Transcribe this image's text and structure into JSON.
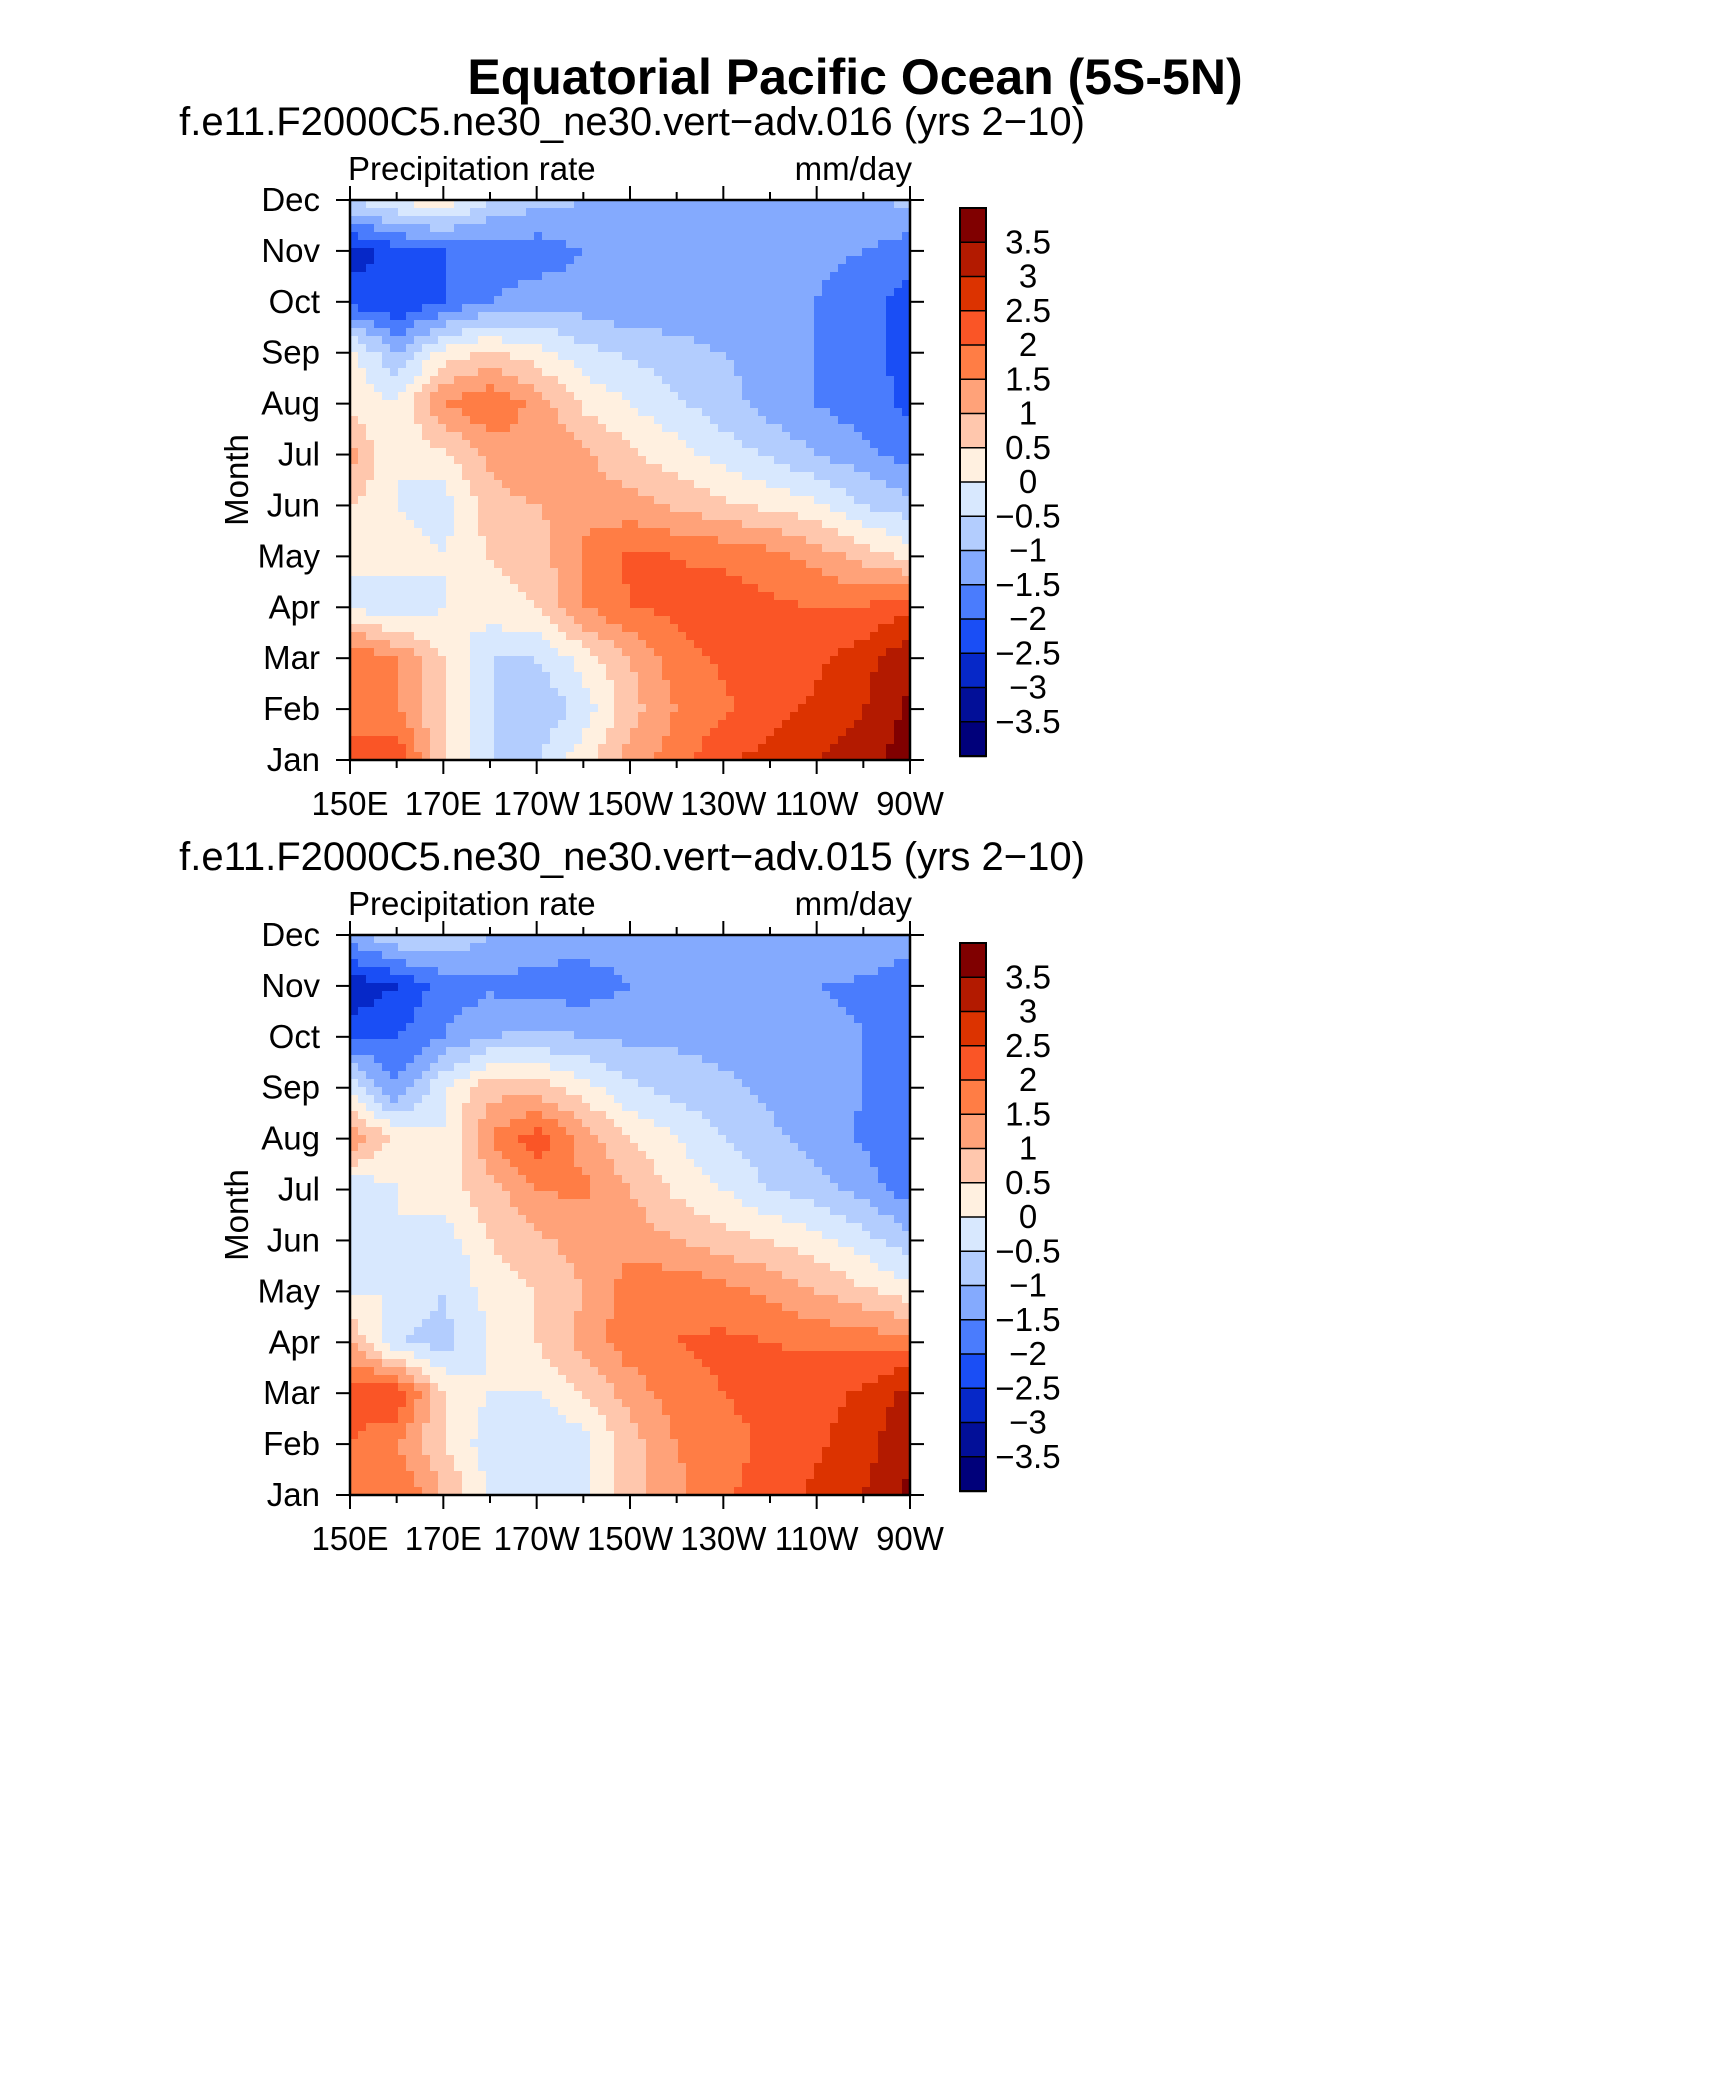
{
  "title": "Equatorial Pacific Ocean (5S-5N)",
  "colorbar": {
    "levels": [
      "3.5",
      "3",
      "2.5",
      "2",
      "1.5",
      "1",
      "0.5",
      "0",
      "−0.5",
      "−1",
      "−1.5",
      "−2",
      "−2.5",
      "−3",
      "−3.5"
    ],
    "colors": [
      "#800000",
      "#b31a00",
      "#dc3300",
      "#fa5526",
      "#ff7d45",
      "#ffa279",
      "#ffc7ad",
      "#fff0e0",
      "#d8e8fe",
      "#b3cdfe",
      "#84aafe",
      "#4a7cfd",
      "#1a4ef5",
      "#0628c8",
      "#020f98",
      "#00007a"
    ]
  },
  "chart_data": [
    {
      "type": "heatmap",
      "subtitle": "f.e11.F2000C5.ne30_ne30.vert−adv.016 (yrs 2−10)",
      "left_label": "Precipitation rate",
      "right_label": "mm/day",
      "ylabel": "Month",
      "x_ticks": [
        "150E",
        "170E",
        "170W",
        "150W",
        "130W",
        "110W",
        "90W"
      ],
      "y_ticks": [
        "Jan",
        "Feb",
        "Mar",
        "Apr",
        "May",
        "Jun",
        "Jul",
        "Aug",
        "Sep",
        "Oct",
        "Nov",
        "Dec"
      ],
      "x_longitudes": [
        150,
        160,
        170,
        180,
        190,
        200,
        210,
        220,
        230,
        240,
        250,
        260,
        270
      ],
      "values": [
        [
          2.0,
          2.5,
          0.5,
          -0.5,
          -0.5,
          0.3,
          1.2,
          1.8,
          2.4,
          2.7,
          3.0,
          3.3,
          3.8
        ],
        [
          2.0,
          1.5,
          0.5,
          -0.5,
          -1.0,
          -0.3,
          0.8,
          1.5,
          1.9,
          2.3,
          2.6,
          3.0,
          3.6
        ],
        [
          2.0,
          1.5,
          0.5,
          -0.5,
          -0.5,
          0.2,
          1.0,
          1.8,
          2.1,
          2.2,
          2.4,
          2.8,
          3.4
        ],
        [
          0.0,
          -0.5,
          0.0,
          0.3,
          0.5,
          1.5,
          2.0,
          2.1,
          2.3,
          2.1,
          2.0,
          2.0,
          2.4
        ],
        [
          0.0,
          0.4,
          0.0,
          0.5,
          0.7,
          1.6,
          2.1,
          2.0,
          1.9,
          1.7,
          1.3,
          0.8,
          0.3
        ],
        [
          0.5,
          0.0,
          -0.3,
          0.8,
          1.0,
          1.3,
          1.2,
          0.9,
          0.6,
          0.4,
          0.1,
          -0.5,
          -0.8
        ],
        [
          1.2,
          0.0,
          0.4,
          1.1,
          1.5,
          1.1,
          0.6,
          0.2,
          -0.2,
          -0.6,
          -1.0,
          -1.3,
          -1.8
        ],
        [
          0.3,
          0.0,
          1.5,
          2.0,
          1.3,
          0.4,
          0.0,
          -0.4,
          -0.8,
          -1.2,
          -1.5,
          -1.8,
          -2.1
        ],
        [
          0.2,
          -1.0,
          0.2,
          0.6,
          0.2,
          -0.3,
          -0.6,
          -0.8,
          -1.0,
          -1.2,
          -1.5,
          -1.8,
          -2.2
        ],
        [
          -2.2,
          -2.5,
          -2.0,
          -1.5,
          -1.2,
          -1.3,
          -1.4,
          -1.4,
          -1.4,
          -1.4,
          -1.5,
          -1.8,
          -2.2
        ],
        [
          -2.8,
          -2.2,
          -2.0,
          -1.8,
          -1.8,
          -1.5,
          -1.5,
          -1.5,
          -1.4,
          -1.4,
          -1.4,
          -1.5,
          -1.8
        ],
        [
          -0.5,
          0.0,
          0.4,
          -0.5,
          -0.8,
          -1.0,
          -1.2,
          -1.2,
          -1.1,
          -1.0,
          -1.0,
          -1.0,
          -0.9
        ]
      ]
    },
    {
      "type": "heatmap",
      "subtitle": "f.e11.F2000C5.ne30_ne30.vert−adv.015 (yrs 2−10)",
      "left_label": "Precipitation rate",
      "right_label": "mm/day",
      "ylabel": "Month",
      "x_ticks": [
        "150E",
        "170E",
        "170W",
        "150W",
        "130W",
        "110W",
        "90W"
      ],
      "y_ticks": [
        "Jan",
        "Feb",
        "Mar",
        "Apr",
        "May",
        "Jun",
        "Jul",
        "Aug",
        "Sep",
        "Oct",
        "Nov",
        "Dec"
      ],
      "x_longitudes": [
        150,
        160,
        170,
        180,
        190,
        200,
        210,
        220,
        230,
        240,
        250,
        260,
        270
      ],
      "values": [
        [
          2.0,
          2.0,
          1.0,
          0.0,
          -0.5,
          -0.2,
          0.8,
          1.4,
          1.9,
          2.3,
          2.6,
          3.0,
          3.6
        ],
        [
          2.0,
          1.5,
          0.5,
          -0.3,
          -0.5,
          -0.2,
          0.8,
          1.5,
          1.8,
          2.1,
          2.4,
          2.8,
          3.4
        ],
        [
          2.3,
          2.5,
          0.5,
          0.0,
          0.0,
          0.5,
          1.2,
          1.8,
          2.0,
          2.2,
          2.3,
          2.6,
          3.2
        ],
        [
          1.0,
          -0.5,
          -0.7,
          0.0,
          0.5,
          1.2,
          1.8,
          2.0,
          2.1,
          2.0,
          1.9,
          1.8,
          1.8
        ],
        [
          0.0,
          0.0,
          -0.5,
          0.2,
          0.5,
          1.0,
          1.8,
          1.9,
          1.7,
          1.4,
          1.0,
          0.6,
          0.2
        ],
        [
          -0.5,
          0.0,
          -0.3,
          0.5,
          0.9,
          1.2,
          1.3,
          1.0,
          0.7,
          0.5,
          0.2,
          -0.3,
          -0.8
        ],
        [
          -0.5,
          0.0,
          0.3,
          0.8,
          1.5,
          1.6,
          1.0,
          0.4,
          0.0,
          -0.5,
          -0.8,
          -1.2,
          -1.8
        ],
        [
          1.5,
          0.3,
          0.0,
          1.5,
          2.3,
          1.3,
          0.5,
          0.0,
          -0.5,
          -0.9,
          -1.2,
          -1.6,
          -2.0
        ],
        [
          0.0,
          -1.5,
          0.0,
          0.8,
          0.8,
          0.2,
          -0.4,
          -0.7,
          -0.9,
          -1.1,
          -1.2,
          -1.5,
          -2.0
        ],
        [
          -2.2,
          -2.0,
          -1.5,
          -1.0,
          -0.9,
          -1.0,
          -1.1,
          -1.1,
          -1.2,
          -1.2,
          -1.3,
          -1.5,
          -1.9
        ],
        [
          -2.9,
          -2.5,
          -1.8,
          -1.6,
          -1.7,
          -1.8,
          -1.5,
          -1.5,
          -1.5,
          -1.5,
          -1.5,
          -1.6,
          -1.9
        ],
        [
          -1.2,
          -0.5,
          -0.5,
          -1.0,
          -1.2,
          -1.2,
          -1.2,
          -1.1,
          -1.1,
          -1.0,
          -1.0,
          -1.0,
          -1.2
        ]
      ]
    }
  ]
}
